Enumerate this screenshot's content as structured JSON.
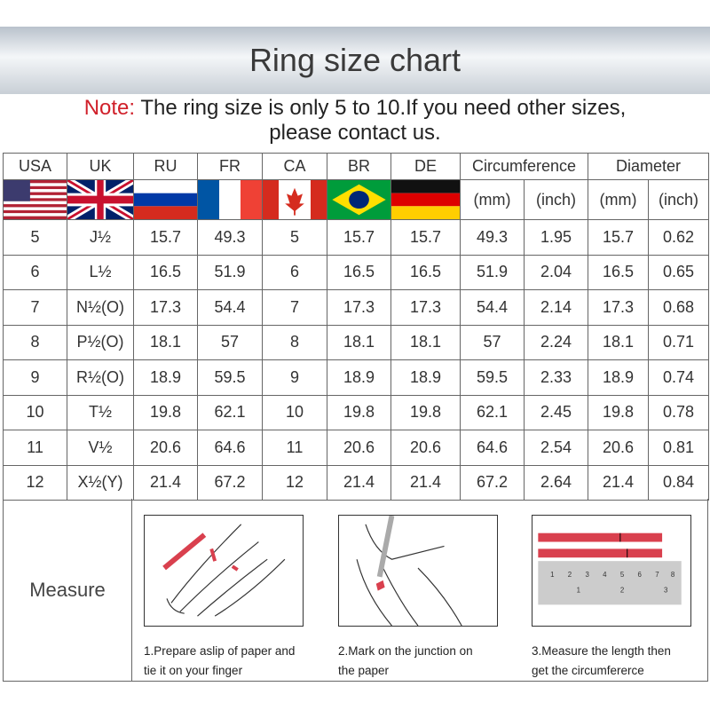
{
  "title": "Ring size chart",
  "note": {
    "label": "Note:",
    "text": " The ring size is only 5 to 10.If you need other sizes,",
    "line2": "please contact us."
  },
  "headers": [
    "USA",
    "UK",
    "RU",
    "FR",
    "CA",
    "BR",
    "DE",
    "Circumference",
    "Diameter"
  ],
  "flags": [
    "usa-flag",
    "uk-flag",
    "russia-flag",
    "france-flag",
    "canada-flag",
    "brazil-flag",
    "germany-flag"
  ],
  "units": [
    "(mm)",
    "(inch)",
    "(mm)",
    "(inch)"
  ],
  "rows": [
    [
      "5",
      "J½",
      "15.7",
      "49.3",
      "5",
      "15.7",
      "15.7",
      "49.3",
      "1.95",
      "15.7",
      "0.62"
    ],
    [
      "6",
      "L½",
      "16.5",
      "51.9",
      "6",
      "16.5",
      "16.5",
      "51.9",
      "2.04",
      "16.5",
      "0.65"
    ],
    [
      "7",
      "N½(O)",
      "17.3",
      "54.4",
      "7",
      "17.3",
      "17.3",
      "54.4",
      "2.14",
      "17.3",
      "0.68"
    ],
    [
      "8",
      "P½(O)",
      "18.1",
      "57",
      "8",
      "18.1",
      "18.1",
      "57",
      "2.24",
      "18.1",
      "0.71"
    ],
    [
      "9",
      "R½(O)",
      "18.9",
      "59.5",
      "9",
      "18.9",
      "18.9",
      "59.5",
      "2.33",
      "18.9",
      "0.74"
    ],
    [
      "10",
      "T½",
      "19.8",
      "62.1",
      "10",
      "19.8",
      "19.8",
      "62.1",
      "2.45",
      "19.8",
      "0.78"
    ],
    [
      "11",
      "V½",
      "20.6",
      "64.6",
      "11",
      "20.6",
      "20.6",
      "64.6",
      "2.54",
      "20.6",
      "0.81"
    ],
    [
      "12",
      "X½(Y)",
      "21.4",
      "67.2",
      "12",
      "21.4",
      "21.4",
      "67.2",
      "2.64",
      "21.4",
      "0.84"
    ]
  ],
  "measure": {
    "label": "Measure",
    "steps": [
      {
        "l1": "1.Prepare aslip of paper and",
        "l2": "tie it on your finger",
        "icon": "hand-paper-strip-illustration"
      },
      {
        "l1": "2.Mark on the junction on",
        "l2": "the paper",
        "icon": "hand-pen-mark-illustration"
      },
      {
        "l1": "3.Measure the length then",
        "l2": "get the circumfererce",
        "icon": "ruler-paper-illustration"
      }
    ]
  },
  "colors": {
    "note_red": "#d0202a",
    "strip_red": "#d9404e"
  }
}
